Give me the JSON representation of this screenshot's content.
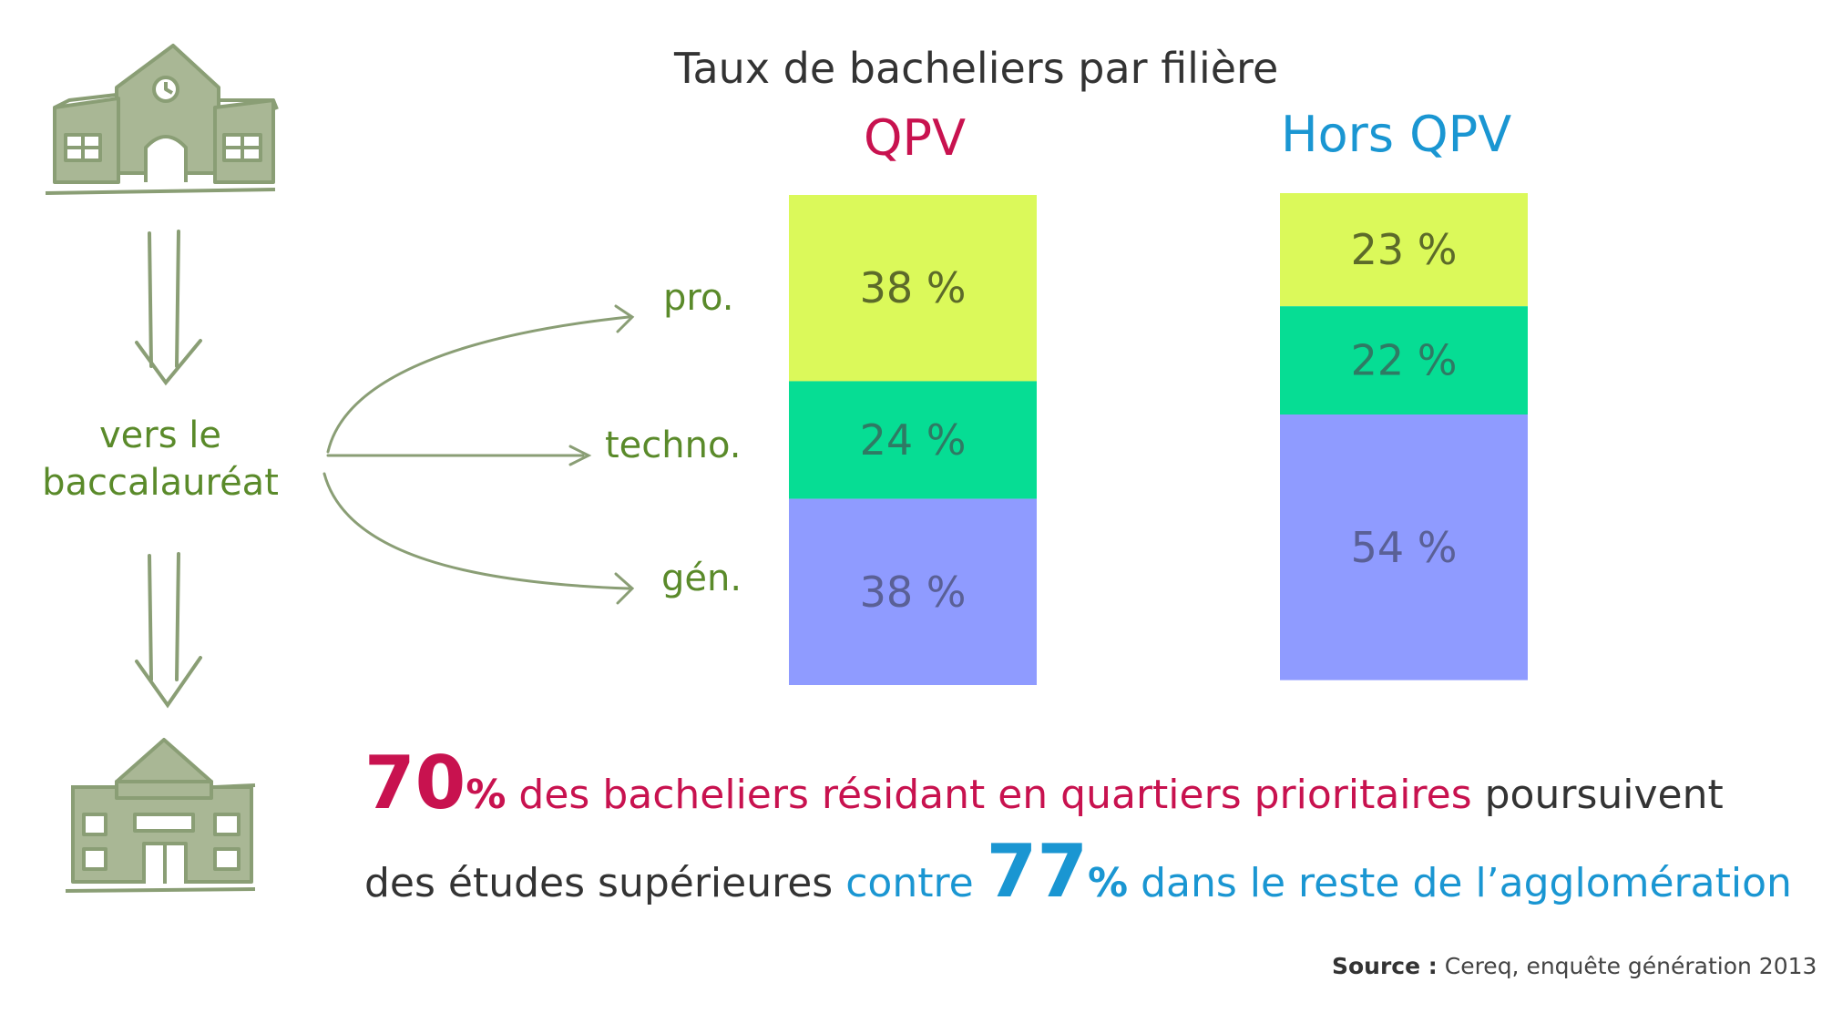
{
  "colors": {
    "pro": "#dbf95a",
    "techno": "#06dd94",
    "gen": "#8f9bff",
    "qpv": "#c8124f",
    "hors_qpv": "#1a96d2",
    "green_text": "#5a8a2a",
    "sketch": "#8a9e75"
  },
  "icons": [
    "school-building-icon",
    "arrow-down-icon",
    "university-building-icon",
    "curved-arrow-icon"
  ],
  "flow": {
    "bac_line1": "vers le",
    "bac_line2": "baccalauréat"
  },
  "chart_data": {
    "type": "bar",
    "stacked": true,
    "title": "Taux de bacheliers par filière",
    "categories": [
      "QPV",
      "Hors QPV"
    ],
    "series": [
      {
        "name": "pro.",
        "values": [
          38,
          23
        ],
        "labels": [
          "38 %",
          "23 %"
        ]
      },
      {
        "name": "techno.",
        "values": [
          24,
          22
        ],
        "labels": [
          "24 %",
          "22 %"
        ]
      },
      {
        "name": "gén.",
        "values": [
          38,
          54
        ],
        "labels": [
          "38 %",
          "54 %"
        ]
      }
    ],
    "ylim": [
      0,
      100
    ],
    "grid": false
  },
  "conclusion": {
    "pct_qpv": "70",
    "pct_qpv_sign": "%",
    "text_qpv": " des  bacheliers résidant en quartiers prioritaires",
    "text_mid1": " poursuivent",
    "text_mid2": "des études supérieures",
    "text_contre": " contre ",
    "pct_hors": "77",
    "pct_hors_sign": "%",
    "text_hors": " dans le reste de l’agglomération"
  },
  "source": {
    "label": "Source :",
    "text": " Cereq, enquête génération 2013"
  }
}
